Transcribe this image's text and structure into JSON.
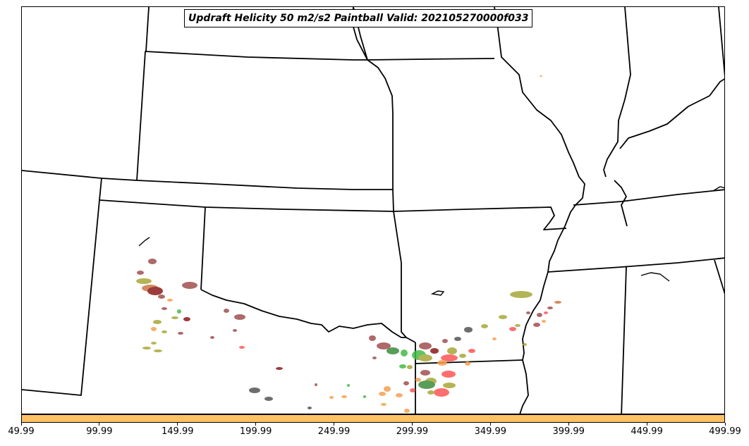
{
  "title": "Updraft Helicity 50 m2/s2 Paintball Valid: 202105270000f033",
  "colorbar": {
    "color": "#fec164",
    "tick_labels": [
      "49.99",
      "99.99",
      "149.99",
      "199.99",
      "249.99",
      "299.99",
      "349.99",
      "399.99",
      "449.99",
      "499.99"
    ]
  },
  "colors": {
    "boundary": "#000000",
    "ensemble_members": [
      "#8b1a1a",
      "#a05050",
      "#a8a838",
      "#44bb44",
      "#ff5555",
      "#f5a050",
      "#555555",
      "#3c8c3c",
      "#cc7744"
    ]
  }
}
